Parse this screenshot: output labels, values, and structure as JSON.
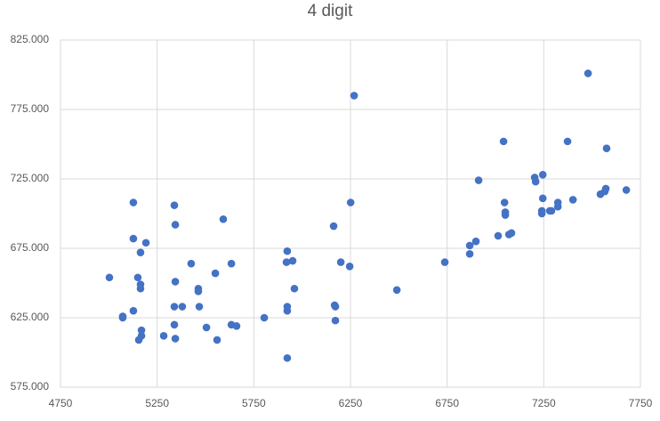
{
  "chart_data": {
    "type": "scatter",
    "title": "4 digit",
    "color": "#4472c4",
    "grid": true,
    "xlim": [
      4750,
      7750
    ],
    "xticks": [
      4750,
      5250,
      5750,
      6250,
      6750,
      7250,
      7750
    ],
    "ylim": [
      575,
      825
    ],
    "yticks": [
      {
        "value": 575,
        "label": "575.000"
      },
      {
        "value": 625,
        "label": "625.000"
      },
      {
        "value": 675,
        "label": "675.000"
      },
      {
        "value": 725,
        "label": "725.000"
      },
      {
        "value": 775,
        "label": "775.000"
      },
      {
        "value": 825,
        "label": "825.000"
      }
    ],
    "x": [
      5003,
      5072,
      5072,
      5127,
      5127,
      5127,
      5150,
      5164,
      5164,
      5169,
      5169,
      5155,
      5164,
      5192,
      5284,
      5339,
      5344,
      5344,
      5339,
      5339,
      5344,
      5380,
      5426,
      5463,
      5463,
      5468,
      5505,
      5551,
      5560,
      5592,
      5634,
      5634,
      5661,
      5804,
      5923,
      5919,
      5951,
      5923,
      5923,
      5960,
      5923,
      6163,
      6168,
      6172,
      6172,
      6200,
      6246,
      6251,
      6269,
      6490,
      6738,
      6867,
      6867,
      6899,
      6913,
      7014,
      7042,
      7047,
      7051,
      7051,
      7070,
      7083,
      7203,
      7208,
      7245,
      7245,
      7240,
      7240,
      7281,
      7290,
      7323,
      7323,
      7373,
      7401,
      7479,
      7543,
      7566,
      7571,
      7575,
      7677
    ],
    "values": [
      654,
      625,
      626,
      708,
      682,
      630,
      654,
      649,
      646,
      616,
      612,
      609,
      672,
      679,
      612,
      706,
      692,
      651,
      633,
      620,
      610,
      633,
      664,
      644,
      646,
      633,
      618,
      657,
      609,
      696,
      664,
      620,
      619,
      625,
      673,
      665,
      666,
      633,
      630,
      646,
      596,
      691,
      634,
      633,
      623,
      665,
      662,
      708,
      785,
      645,
      665,
      677,
      671,
      680,
      724,
      684,
      752,
      708,
      701,
      699,
      685,
      686,
      726,
      723,
      728,
      711,
      702,
      700,
      702,
      702,
      708,
      705,
      752,
      710,
      801,
      714,
      716,
      718,
      747,
      717
    ]
  }
}
